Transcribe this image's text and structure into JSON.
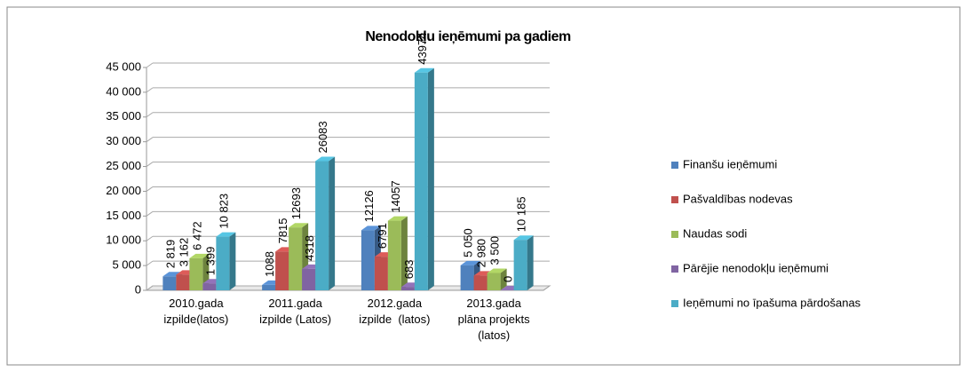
{
  "chart_data": {
    "type": "bar3d",
    "title": "Nenodokļu ieņēmumi pa gadiem",
    "categories": [
      "2010.gada\nizpilde(latos)",
      "2011.gada\nizpilde (Latos)",
      "2012.gada\nizpilde  (latos)",
      "2013.gada\nplāna projekts\n(latos)"
    ],
    "series": [
      {
        "name": "Finanšu ieņēmumi",
        "color": "#4f81bd",
        "values": [
          2819,
          1088,
          12126,
          5050
        ],
        "value_labels": [
          "2 819",
          "1088",
          "12126",
          "5 050"
        ]
      },
      {
        "name": "Pašvaldības nodevas",
        "color": "#c0504d",
        "values": [
          3162,
          7815,
          6791,
          2980
        ],
        "value_labels": [
          "3 162",
          "7815",
          "6791",
          "2 980"
        ]
      },
      {
        "name": "Naudas sodi",
        "color": "#9bbb59",
        "values": [
          6472,
          12693,
          14057,
          3500
        ],
        "value_labels": [
          "6 472",
          "12693",
          "14057",
          "3 500"
        ]
      },
      {
        "name": "Pārējie nenodokļu ieņēmumi",
        "color": "#8064a2",
        "values": [
          1399,
          4318,
          683,
          0
        ],
        "value_labels": [
          "1 399",
          "4318",
          "683",
          "0"
        ]
      },
      {
        "name": "Ieņēmumi no īpašuma pārdošanas",
        "color": "#4bacc6",
        "values": [
          10823,
          26083,
          43974,
          10185
        ],
        "value_labels": [
          "10 823",
          "26083",
          "43974",
          "10 185"
        ]
      }
    ],
    "ylim": [
      0,
      45000
    ],
    "yticks": [
      0,
      {
        "value": 5000,
        "label": "5 000"
      },
      {
        "value": 10000,
        "label": "10 000"
      },
      {
        "value": 15000,
        "label": "15 000"
      },
      {
        "value": 20000,
        "label": "20 000"
      },
      {
        "value": 25000,
        "label": "25 000"
      },
      {
        "value": 30000,
        "label": "30 000"
      },
      {
        "value": 35000,
        "label": "35 000"
      },
      {
        "value": 40000,
        "label": "40 000"
      },
      {
        "value": 45000,
        "label": "45 000"
      }
    ],
    "grid": true,
    "legend": "right"
  }
}
